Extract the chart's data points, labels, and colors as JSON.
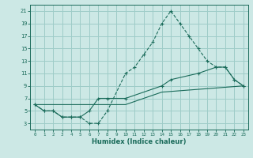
{
  "xlabel": "Humidex (Indice chaleur)",
  "background_color": "#cce8e5",
  "grid_color": "#9eccc8",
  "line_color": "#1a6b5a",
  "xlim": [
    -0.5,
    23.5
  ],
  "ylim": [
    2,
    22
  ],
  "xticks": [
    0,
    1,
    2,
    3,
    4,
    5,
    6,
    7,
    8,
    9,
    10,
    11,
    12,
    13,
    14,
    15,
    16,
    17,
    18,
    19,
    20,
    21,
    22,
    23
  ],
  "yticks": [
    3,
    5,
    7,
    9,
    11,
    13,
    15,
    17,
    19,
    21
  ],
  "curve1_x": [
    0,
    1,
    2,
    3,
    4,
    5,
    6,
    7,
    8,
    10,
    11,
    12,
    13,
    14,
    15,
    16,
    17,
    18,
    19,
    20,
    21,
    22,
    23
  ],
  "curve1_y": [
    6,
    5,
    5,
    4,
    4,
    4,
    3,
    3,
    5,
    11,
    12,
    14,
    16,
    19,
    21,
    19,
    17,
    15,
    13,
    12,
    12,
    10,
    9
  ],
  "curve2_x": [
    0,
    1,
    2,
    3,
    4,
    5,
    6,
    7,
    8,
    10,
    14,
    15,
    18,
    20,
    21,
    22,
    23
  ],
  "curve2_y": [
    6,
    5,
    5,
    4,
    4,
    4,
    5,
    7,
    7,
    7,
    9,
    10,
    11,
    12,
    12,
    10,
    9
  ],
  "curve3_x": [
    0,
    10,
    14,
    23
  ],
  "curve3_y": [
    6,
    6,
    8,
    9
  ]
}
